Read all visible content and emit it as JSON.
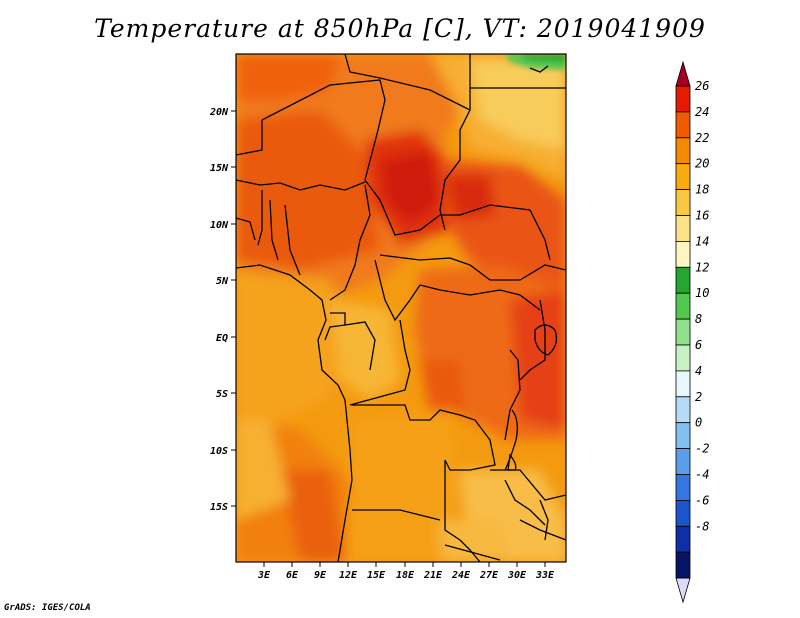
{
  "title": "Temperature at 850hPa [C], VT: 2019041909",
  "footer": "GrADS: IGES/COLA",
  "map": {
    "lat_labels": [
      "20N",
      "15N",
      "10N",
      "5N",
      "EQ",
      "5S",
      "10S",
      "15S"
    ],
    "lon_labels": [
      "3E",
      "6E",
      "9E",
      "12E",
      "15E",
      "18E",
      "21E",
      "24E",
      "27E",
      "30E",
      "33E"
    ]
  },
  "colorbar": {
    "labels": [
      "26",
      "24",
      "22",
      "20",
      "18",
      "16",
      "14",
      "12",
      "10",
      "8",
      "6",
      "4",
      "2",
      "0",
      "-2",
      "-4",
      "-6",
      "-8"
    ],
    "colors": [
      "#a50021",
      "#e51a00",
      "#f05a00",
      "#f38a00",
      "#f7ab0f",
      "#f8c843",
      "#fce38a",
      "#fdf5c2",
      "#24a62f",
      "#52c84f",
      "#91e08c",
      "#c9f2c4",
      "#e8f6fd",
      "#b5dcf7",
      "#84bff1",
      "#5a9eea",
      "#3577e0",
      "#1a55cc",
      "#0f2fa8",
      "#081566",
      "#dcdcf5"
    ]
  },
  "chart_data": {
    "type": "heatmap",
    "title": "Temperature at 850hPa [C], VT: 2019041909",
    "variable": "Temperature at 850hPa",
    "units": "C",
    "valid_time": "2019041909",
    "x_ticks": [
      "3E",
      "6E",
      "9E",
      "12E",
      "15E",
      "18E",
      "21E",
      "24E",
      "27E",
      "30E",
      "33E"
    ],
    "y_ticks": [
      "20N",
      "15N",
      "10N",
      "5N",
      "EQ",
      "5S",
      "10S",
      "15S"
    ],
    "xlim": [
      0,
      35
    ],
    "ylim": [
      -20,
      25
    ],
    "color_levels": [
      26,
      24,
      22,
      20,
      18,
      16,
      14,
      12,
      10,
      8,
      6,
      4,
      2,
      0,
      -2,
      -4,
      -6,
      -8
    ]
  }
}
